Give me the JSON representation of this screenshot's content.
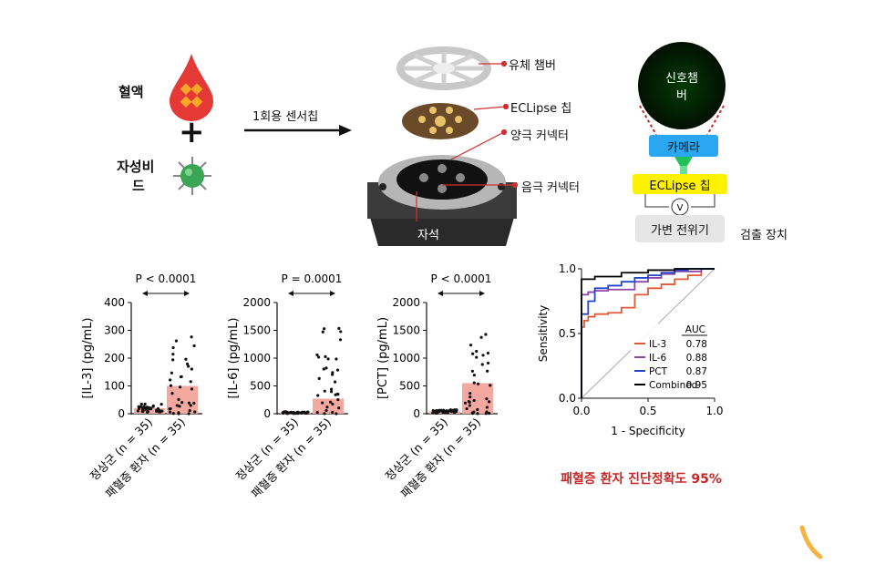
{
  "top": {
    "blood_label": "혈액",
    "bead_label_1": "자성비",
    "bead_label_2": "드",
    "arrow_label": "1회용 센서칩",
    "device_labels": {
      "fluid_chamber": "유체 챔버",
      "eclipse_chip": "ECLipse 칩",
      "anode": "양극 커넥터",
      "cathode": "음극 커넥터",
      "magnet": "자석"
    },
    "detector": {
      "signal_chamber_1": "신호챔",
      "signal_chamber_2": "버",
      "camera": "카메라",
      "chip": "ECLipse 칩",
      "v_symbol": "V",
      "potentiostat": "가변 전위기",
      "device_label": "검출 장치"
    }
  },
  "result_text": "패혈증 환자 진단정확도 95%",
  "colors": {
    "bar": "#f4a9a0",
    "red_accent": "#c62828",
    "camera": "#2aa7f0",
    "chip": "#fff200",
    "il3": "#e05a3a",
    "il6": "#8e44ad",
    "pct": "#2346c8",
    "combined": "#000000"
  },
  "chart_data": [
    {
      "type": "bar",
      "ylabel": "[IL-3] (pg/mL)",
      "ylim": [
        0,
        400
      ],
      "yticks": [
        "0",
        "100",
        "200",
        "300",
        "400"
      ],
      "categories": [
        "정상군 (n = 35)",
        "패혈증 환자 (n = 35)"
      ],
      "values": [
        20,
        100
      ],
      "pvalue": "P < 0.0001"
    },
    {
      "type": "bar",
      "ylabel": "[IL-6] (pg/mL)",
      "ylim": [
        0,
        2000
      ],
      "yticks": [
        "0",
        "500",
        "1000",
        "1500",
        "2000"
      ],
      "categories": [
        "정상군 (n = 35)",
        "패혈증 환자 (n = 35)"
      ],
      "values": [
        20,
        270
      ],
      "pvalue": "P = 0.0001"
    },
    {
      "type": "bar",
      "ylabel": "[PCT] (pg/mL)",
      "ylim": [
        0,
        2000
      ],
      "yticks": [
        "0",
        "500",
        "1000",
        "1500",
        "2000"
      ],
      "categories": [
        "정상군 (n = 35)",
        "패혈증 환자 (n = 35)"
      ],
      "values": [
        40,
        550
      ],
      "pvalue": "P < 0.0001"
    },
    {
      "type": "line",
      "xlabel": "1 - Specificity",
      "ylabel": "Sensitivity",
      "xlim": [
        0,
        1
      ],
      "ylim": [
        0,
        1
      ],
      "xticks": [
        "0.0",
        "0.5",
        "1.0"
      ],
      "yticks": [
        "0.0",
        "0.5",
        "1.0"
      ],
      "legend_header": "AUC",
      "series": [
        {
          "name": "IL-3",
          "auc": "0.78",
          "x": [
            0,
            0,
            0.02,
            0.05,
            0.1,
            0.2,
            0.3,
            0.4,
            0.5,
            0.6,
            0.7,
            0.8,
            0.9,
            1
          ],
          "y": [
            0,
            0.3,
            0.55,
            0.6,
            0.63,
            0.65,
            0.66,
            0.7,
            0.8,
            0.85,
            0.88,
            0.92,
            0.95,
            1
          ]
        },
        {
          "name": "IL-6",
          "auc": "0.88",
          "x": [
            0,
            0,
            0.05,
            0.1,
            0.2,
            0.4,
            0.5,
            0.6,
            0.7,
            0.8,
            0.9,
            1
          ],
          "y": [
            0,
            0.8,
            0.8,
            0.82,
            0.83,
            0.84,
            0.9,
            0.93,
            0.96,
            0.98,
            0.98,
            1
          ]
        },
        {
          "name": "PCT",
          "auc": "0.87",
          "x": [
            0,
            0,
            0.05,
            0.1,
            0.2,
            0.3,
            0.4,
            0.5,
            0.6,
            0.7,
            0.8,
            0.9,
            1
          ],
          "y": [
            0,
            0.5,
            0.65,
            0.75,
            0.85,
            0.87,
            0.9,
            0.93,
            0.95,
            0.97,
            0.99,
            1,
            1
          ]
        },
        {
          "name": "Combined",
          "auc": "0.95",
          "x": [
            0,
            0,
            0.1,
            0.3,
            0.5,
            0.7,
            0.9,
            1
          ],
          "y": [
            0,
            0.9,
            0.92,
            0.94,
            0.97,
            0.99,
            1,
            1
          ]
        }
      ]
    }
  ]
}
